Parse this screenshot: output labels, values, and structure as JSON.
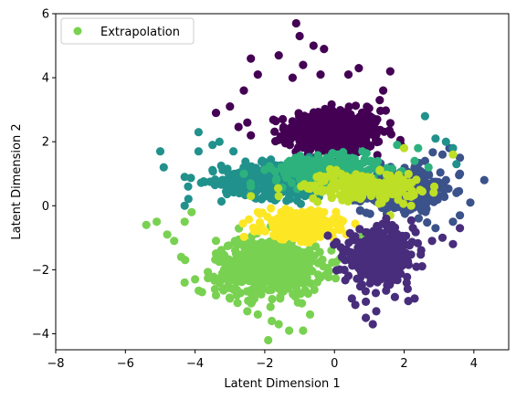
{
  "chart_data": {
    "type": "scatter",
    "title": "",
    "xlabel": "Latent Dimension 1",
    "ylabel": "Latent Dimension 2",
    "xlim": [
      -8,
      5
    ],
    "ylim": [
      -4.5,
      6
    ],
    "xticks": [
      -8,
      -6,
      -4,
      -2,
      0,
      2,
      4
    ],
    "yticks": [
      -4,
      -2,
      0,
      2,
      4,
      6
    ],
    "xtick_labels": [
      "−8",
      "−6",
      "−4",
      "−2",
      "0",
      "2",
      "4"
    ],
    "ytick_labels": [
      "−4",
      "−2",
      "0",
      "2",
      "4",
      "6"
    ],
    "grid": false,
    "legend": {
      "placement": "upper-left",
      "entries": [
        {
          "label": "Extrapolation",
          "color": "#79d151"
        }
      ]
    },
    "clusters": [
      {
        "color": "#440154",
        "center": [
          0.0,
          2.3
        ],
        "spread": [
          1.1,
          0.55
        ],
        "count": 520,
        "extra": [
          [
            -1.1,
            5.7
          ],
          [
            -1.0,
            5.3
          ],
          [
            -0.6,
            5.0
          ],
          [
            -0.3,
            4.9
          ],
          [
            -2.4,
            4.6
          ],
          [
            -1.6,
            4.7
          ],
          [
            -0.9,
            4.4
          ],
          [
            -2.2,
            4.1
          ],
          [
            -0.4,
            4.1
          ],
          [
            0.7,
            4.3
          ],
          [
            1.6,
            4.2
          ],
          [
            -2.6,
            3.6
          ],
          [
            -3.4,
            2.9
          ],
          [
            -3.0,
            3.1
          ],
          [
            -2.5,
            2.6
          ],
          [
            -2.4,
            2.2
          ],
          [
            1.3,
            3.3
          ],
          [
            1.4,
            3.6
          ],
          [
            0.4,
            4.1
          ],
          [
            -1.2,
            4.0
          ]
        ]
      },
      {
        "color": "#3b528b",
        "center": [
          1.9,
          0.5
        ],
        "spread": [
          0.9,
          0.55
        ],
        "count": 420,
        "extra": [
          [
            2.6,
            1.4
          ],
          [
            3.3,
            1.8
          ],
          [
            3.6,
            1.5
          ],
          [
            3.2,
            0.8
          ],
          [
            3.5,
            0.4
          ],
          [
            3.9,
            0.1
          ],
          [
            3.6,
            -0.3
          ],
          [
            4.3,
            0.8
          ],
          [
            3.4,
            -0.5
          ],
          [
            2.9,
            -0.7
          ],
          [
            3.6,
            1.0
          ],
          [
            3.1,
            1.6
          ]
        ]
      },
      {
        "color": "#21918c",
        "center": [
          -1.6,
          0.8
        ],
        "spread": [
          1.3,
          0.45
        ],
        "count": 360,
        "extra": [
          [
            -5.0,
            1.7
          ],
          [
            -4.9,
            1.2
          ],
          [
            -4.3,
            0.9
          ],
          [
            -4.2,
            0.6
          ],
          [
            -4.3,
            0.0
          ],
          [
            -3.9,
            1.7
          ],
          [
            -3.9,
            2.3
          ],
          [
            -3.5,
            1.9
          ],
          [
            -3.3,
            2.0
          ],
          [
            -2.9,
            1.7
          ],
          [
            2.6,
            2.8
          ],
          [
            2.9,
            2.1
          ],
          [
            3.2,
            2.0
          ],
          [
            3.4,
            1.8
          ],
          [
            3.5,
            1.3
          ]
        ]
      },
      {
        "color": "#2db27d",
        "center": [
          -0.2,
          1.1
        ],
        "spread": [
          1.2,
          0.35
        ],
        "count": 300,
        "extra": [
          [
            -1.0,
            1.4
          ],
          [
            0.1,
            1.6
          ],
          [
            0.8,
            1.7
          ],
          [
            1.8,
            1.9
          ],
          [
            2.4,
            1.8
          ],
          [
            2.7,
            1.2
          ],
          [
            2.3,
            1.4
          ],
          [
            -2.4,
            0.6
          ],
          [
            -2.6,
            1.0
          ]
        ]
      },
      {
        "color": "#bddf26",
        "center": [
          0.8,
          0.6
        ],
        "spread": [
          1.3,
          0.35
        ],
        "count": 180,
        "extra": [
          [
            3.4,
            1.6
          ],
          [
            2.0,
            1.8
          ],
          [
            1.3,
            1.1
          ],
          [
            -2.4,
            0.3
          ],
          [
            -1.6,
            0.3
          ],
          [
            1.6,
            -0.3
          ],
          [
            2.2,
            0.0
          ]
        ]
      },
      {
        "color": "#79d151",
        "center": [
          -1.9,
          -1.9
        ],
        "spread": [
          1.2,
          0.7
        ],
        "count": 620,
        "extra": [
          [
            -5.4,
            -0.6
          ],
          [
            -5.1,
            -0.5
          ],
          [
            -4.8,
            -0.9
          ],
          [
            -4.6,
            -1.1
          ],
          [
            -4.4,
            -1.6
          ],
          [
            -4.3,
            -2.4
          ],
          [
            -4.3,
            -0.5
          ],
          [
            -4.1,
            -0.2
          ],
          [
            -4.0,
            -2.3
          ],
          [
            -3.8,
            -2.7
          ],
          [
            -3.4,
            -2.8
          ],
          [
            -3.2,
            -2.6
          ],
          [
            -2.5,
            -3.3
          ],
          [
            -2.2,
            -3.4
          ],
          [
            -1.8,
            -3.6
          ],
          [
            -1.6,
            -3.7
          ],
          [
            -1.9,
            -4.2
          ],
          [
            -1.3,
            -3.9
          ],
          [
            -0.9,
            -3.9
          ],
          [
            -0.7,
            -3.4
          ],
          [
            -2.4,
            -2.7
          ],
          [
            -3.0,
            -2.9
          ]
        ]
      },
      {
        "color": "#fde725",
        "center": [
          -1.0,
          -0.6
        ],
        "spread": [
          0.85,
          0.35
        ],
        "count": 260,
        "extra": [
          [
            -2.2,
            -0.2
          ],
          [
            -1.4,
            -0.1
          ],
          [
            -0.3,
            -0.2
          ],
          [
            0.1,
            -0.6
          ],
          [
            -2.3,
            -0.8
          ],
          [
            -1.1,
            -1.0
          ]
        ]
      },
      {
        "color": "#472d7b",
        "center": [
          1.3,
          -1.6
        ],
        "spread": [
          0.8,
          0.65
        ],
        "count": 430,
        "extra": [
          [
            0.9,
            -3.5
          ],
          [
            1.1,
            -3.7
          ],
          [
            1.2,
            -3.3
          ],
          [
            0.6,
            -3.1
          ],
          [
            0.5,
            -2.9
          ],
          [
            2.3,
            -2.9
          ],
          [
            2.1,
            -2.6
          ],
          [
            2.8,
            -1.1
          ],
          [
            3.1,
            -1.0
          ],
          [
            3.4,
            -1.2
          ],
          [
            3.6,
            -0.7
          ],
          [
            0.9,
            -3.0
          ]
        ]
      }
    ]
  }
}
